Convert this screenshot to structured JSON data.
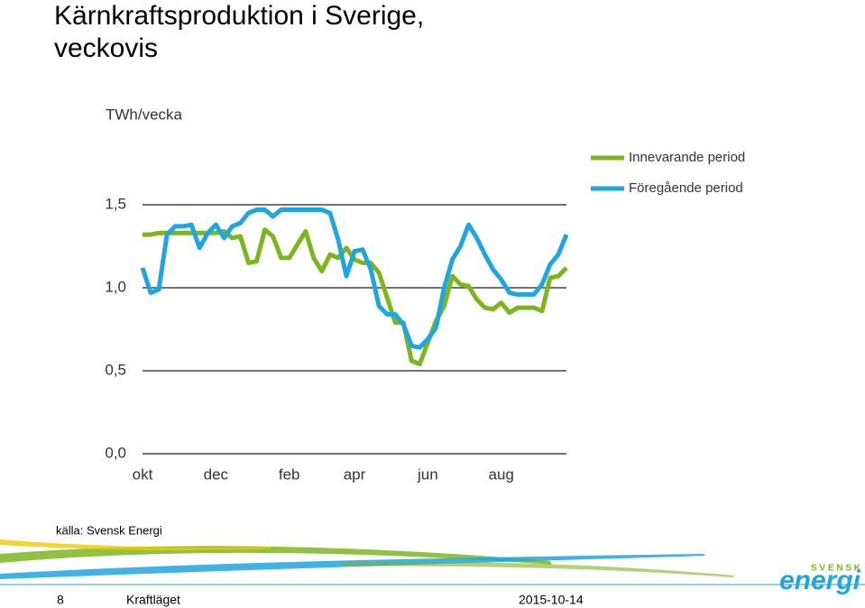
{
  "chart_data": {
    "type": "line",
    "title": "Kärnkraftsproduktion i Sverige, veckovis",
    "y_label": "TWh/vecka",
    "categories": [
      "okt",
      null,
      null,
      null,
      null,
      null,
      null,
      null,
      null,
      "dec",
      null,
      null,
      null,
      null,
      null,
      null,
      null,
      null,
      "feb",
      null,
      null,
      null,
      null,
      null,
      null,
      null,
      "apr",
      null,
      null,
      null,
      null,
      null,
      null,
      null,
      null,
      "jun",
      null,
      null,
      null,
      null,
      null,
      null,
      null,
      null,
      "aug",
      null,
      null,
      null,
      null,
      null,
      null,
      null,
      null
    ],
    "series": [
      {
        "name": "Innevarande period",
        "color": "#7cb61e",
        "values": [
          1.32,
          1.32,
          1.33,
          1.33,
          1.33,
          1.33,
          1.33,
          1.33,
          1.33,
          1.33,
          1.34,
          1.3,
          1.31,
          1.15,
          1.16,
          1.35,
          1.31,
          1.18,
          1.18,
          1.26,
          1.34,
          1.18,
          1.1,
          1.2,
          1.18,
          1.24,
          1.17,
          1.15,
          1.15,
          1.09,
          0.94,
          0.79,
          0.79,
          0.56,
          0.54,
          0.67,
          0.8,
          0.89,
          1.07,
          1.02,
          1.01,
          0.93,
          0.88,
          0.87,
          0.91,
          0.85,
          0.88,
          0.88,
          0.88,
          0.86,
          1.06,
          1.07,
          1.12
        ]
      },
      {
        "name": "Föregående period",
        "color": "#1fa5e0",
        "values": [
          1.12,
          0.97,
          0.99,
          1.32,
          1.37,
          1.37,
          1.38,
          1.24,
          1.33,
          1.38,
          1.3,
          1.37,
          1.39,
          1.45,
          1.47,
          1.47,
          1.43,
          1.47,
          1.47,
          1.47,
          1.47,
          1.47,
          1.47,
          1.45,
          1.29,
          1.07,
          1.22,
          1.23,
          1.11,
          0.89,
          0.84,
          0.84,
          0.78,
          0.65,
          0.64,
          0.69,
          0.76,
          1.0,
          1.17,
          1.25,
          1.38,
          1.3,
          1.2,
          1.11,
          1.05,
          0.97,
          0.96,
          0.96,
          0.96,
          1.02,
          1.14,
          1.2,
          1.32
        ]
      }
    ],
    "ylim": [
      0,
      1.5
    ],
    "yticks": [
      {
        "value": 0,
        "label": "0,0"
      },
      {
        "value": 0.5,
        "label": "0,5"
      },
      {
        "value": 1,
        "label": "1,0"
      },
      {
        "value": 1.5,
        "label": "1,5"
      }
    ],
    "grid": true,
    "legend": "top-right"
  },
  "source": "källa: Svensk Energi",
  "footer": {
    "page": "8",
    "section": "Kraftläget",
    "date": "2015-10-14"
  },
  "logo": {
    "top": "S V E N S K",
    "bottom": "energi"
  }
}
